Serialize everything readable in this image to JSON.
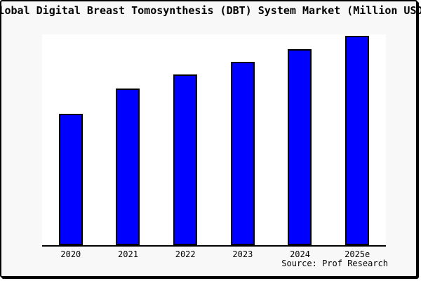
{
  "header": {
    "title": "Global Digital Breast Tomosynthesis (DBT) System Market (Million USD)"
  },
  "footer": {
    "source": "Source: Prof Research"
  },
  "colors": {
    "bar_fill": "#0000ff",
    "bar_edge": "#000000",
    "figure_bg": "#f8f8f8",
    "plot_bg": "#ffffff",
    "frame": "#000000",
    "text": "#000000"
  },
  "chart_data": {
    "type": "bar",
    "title": "Global Digital Breast Tomosynthesis (DBT) System Market (Million USD)",
    "categories": [
      "2020",
      "2021",
      "2022",
      "2023",
      "2024",
      "2025e"
    ],
    "values": [
      62.8,
      75.1,
      81.7,
      87.7,
      93.7,
      100
    ],
    "units": "relative index (no y-axis tick labels shown in chart; 2025e bar = 100)",
    "xlabel": "",
    "ylabel": "",
    "ylim": [
      0,
      100.8
    ],
    "grid": false,
    "legend": false,
    "y_axis_shown": false,
    "annotation": "Source: Prof Research"
  }
}
